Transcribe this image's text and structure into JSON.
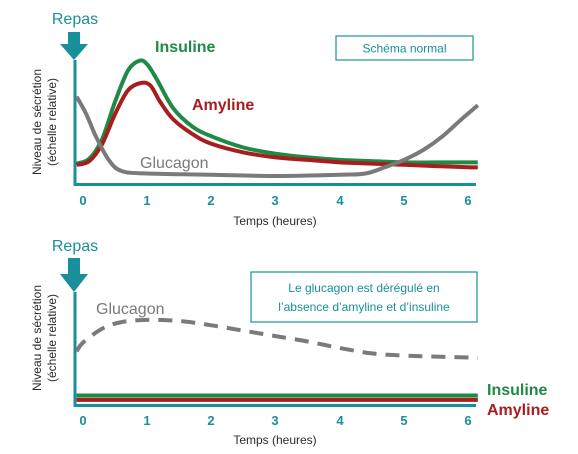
{
  "colors": {
    "teal": "#1a8f9c",
    "insulin": "#1f8a45",
    "amylin": "#a81d1d",
    "glucagon": "#7a7a7a",
    "text": "#2b2b2b"
  },
  "chart_data": [
    {
      "type": "line",
      "annotation": "Schéma normal",
      "meal_marker": "Repas",
      "ylabel_line1": "Niveau de sécrétion",
      "ylabel_line2": "(échelle relative)",
      "xlabel": "Temps (heures)",
      "xlim": [
        0,
        6
      ],
      "ylim": [
        0,
        1
      ],
      "x_ticks": [
        "0",
        "1",
        "2",
        "3",
        "4",
        "5",
        "6"
      ],
      "grid": false,
      "series": [
        {
          "name": "Insuline",
          "color": "#1f8a45",
          "style": "solid",
          "points": [
            [
              -0.1,
              0.1
            ],
            [
              0.1,
              0.14
            ],
            [
              0.3,
              0.3
            ],
            [
              0.5,
              0.6
            ],
            [
              0.7,
              0.85
            ],
            [
              0.88,
              0.93
            ],
            [
              1.0,
              0.9
            ],
            [
              1.15,
              0.78
            ],
            [
              1.4,
              0.55
            ],
            [
              1.7,
              0.4
            ],
            [
              2.0,
              0.32
            ],
            [
              2.5,
              0.23
            ],
            [
              3.0,
              0.18
            ],
            [
              3.5,
              0.15
            ],
            [
              4.0,
              0.13
            ],
            [
              4.5,
              0.12
            ],
            [
              5.0,
              0.11
            ],
            [
              5.5,
              0.11
            ],
            [
              6.0,
              0.11
            ],
            [
              6.15,
              0.11
            ]
          ]
        },
        {
          "name": "Amyline",
          "color": "#a81d1d",
          "style": "solid",
          "points": [
            [
              -0.1,
              0.09
            ],
            [
              0.1,
              0.12
            ],
            [
              0.3,
              0.26
            ],
            [
              0.5,
              0.5
            ],
            [
              0.7,
              0.69
            ],
            [
              0.9,
              0.75
            ],
            [
              1.05,
              0.73
            ],
            [
              1.2,
              0.6
            ],
            [
              1.4,
              0.46
            ],
            [
              1.7,
              0.34
            ],
            [
              2.0,
              0.26
            ],
            [
              2.5,
              0.19
            ],
            [
              3.0,
              0.15
            ],
            [
              3.5,
              0.13
            ],
            [
              4.0,
              0.11
            ],
            [
              4.5,
              0.1
            ],
            [
              5.0,
              0.09
            ],
            [
              5.5,
              0.08
            ],
            [
              6.0,
              0.07
            ],
            [
              6.15,
              0.07
            ]
          ]
        },
        {
          "name": "Glucagon",
          "color": "#7a7a7a",
          "style": "solid",
          "points": [
            [
              -0.1,
              0.64
            ],
            [
              0.05,
              0.5
            ],
            [
              0.2,
              0.32
            ],
            [
              0.4,
              0.13
            ],
            [
              0.6,
              0.04
            ],
            [
              1.0,
              0.02
            ],
            [
              2.0,
              0.01
            ],
            [
              3.0,
              0.0
            ],
            [
              4.0,
              0.01
            ],
            [
              4.4,
              0.02
            ],
            [
              4.7,
              0.07
            ],
            [
              5.0,
              0.13
            ],
            [
              5.3,
              0.21
            ],
            [
              5.6,
              0.32
            ],
            [
              5.9,
              0.46
            ],
            [
              6.15,
              0.57
            ]
          ]
        }
      ]
    },
    {
      "type": "line",
      "annotation": "Le glucagon est dérégulé en l’absence d’amyline et d’insuline",
      "annotation_line1": "Le glucagon est dérégulé en",
      "annotation_line2": "l’absence d’amyline et d’insuline",
      "meal_marker": "Repas",
      "ylabel_line1": "Niveau de sécrétion",
      "ylabel_line2": "(échelle relative)",
      "xlabel": "Temps (heures)",
      "xlim": [
        0,
        6
      ],
      "ylim": [
        0,
        1
      ],
      "x_ticks": [
        "0",
        "1",
        "2",
        "3",
        "4",
        "5",
        "6"
      ],
      "grid": false,
      "series": [
        {
          "name": "Glucagon",
          "color": "#7a7a7a",
          "style": "dashed",
          "points": [
            [
              -0.1,
              0.47
            ],
            [
              0.0,
              0.55
            ],
            [
              0.3,
              0.68
            ],
            [
              0.6,
              0.74
            ],
            [
              1.0,
              0.76
            ],
            [
              1.5,
              0.75
            ],
            [
              2.0,
              0.71
            ],
            [
              2.5,
              0.66
            ],
            [
              3.0,
              0.61
            ],
            [
              3.5,
              0.56
            ],
            [
              4.0,
              0.5
            ],
            [
              4.5,
              0.45
            ],
            [
              5.0,
              0.43
            ],
            [
              5.5,
              0.42
            ],
            [
              6.15,
              0.41
            ]
          ]
        },
        {
          "name": "Insuline",
          "color": "#1f8a45",
          "style": "solid",
          "points": [
            [
              -0.1,
              0.06
            ],
            [
              6.15,
              0.06
            ]
          ]
        },
        {
          "name": "Amyline",
          "color": "#a81d1d",
          "style": "solid",
          "points": [
            [
              -0.1,
              0.02
            ],
            [
              6.15,
              0.02
            ]
          ]
        }
      ]
    }
  ]
}
